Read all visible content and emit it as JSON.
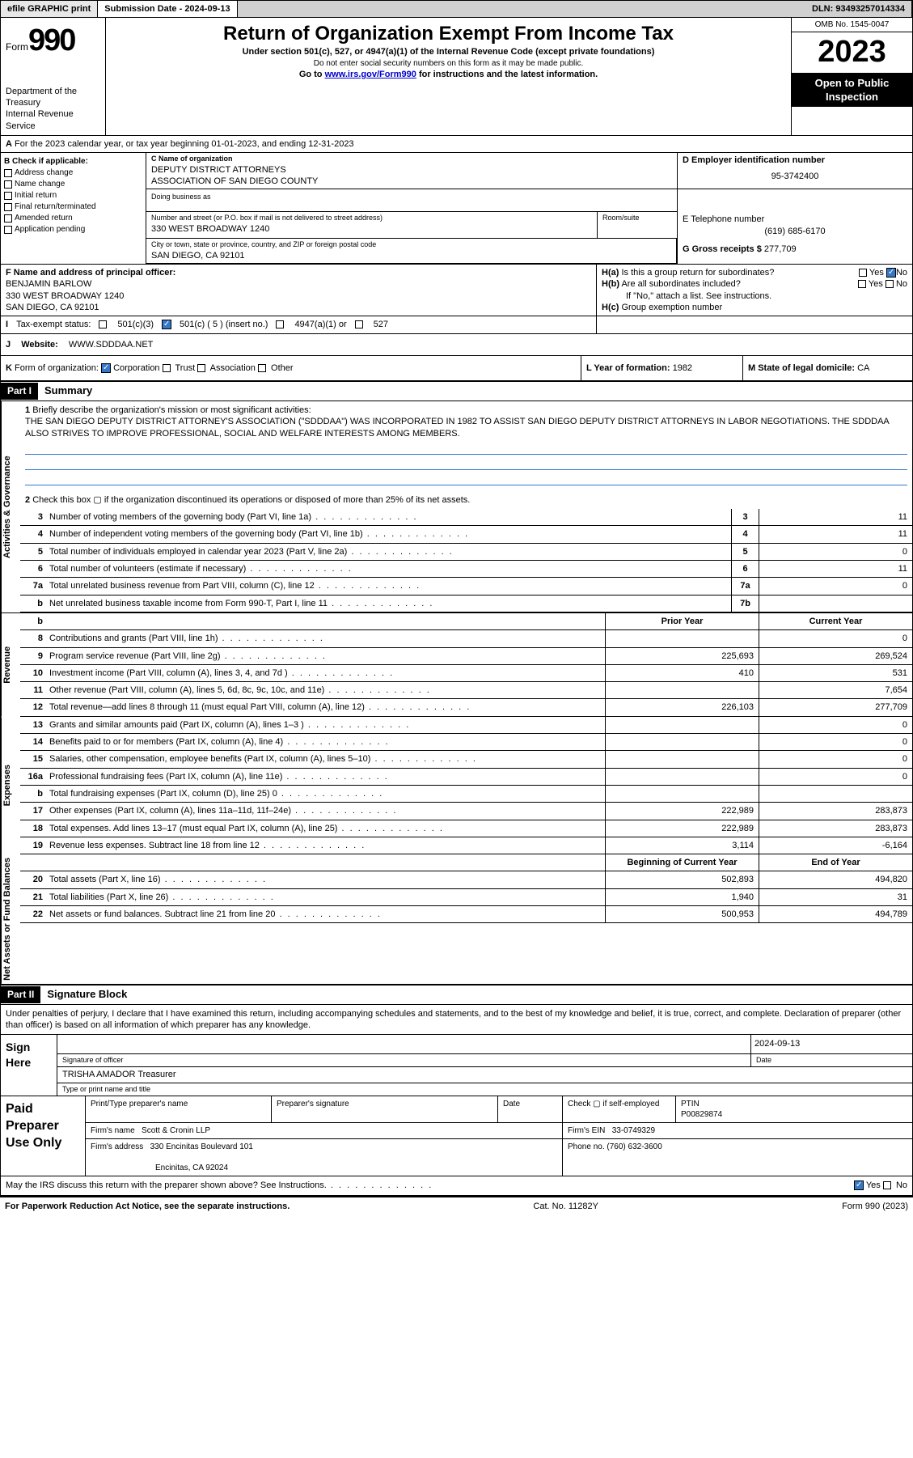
{
  "topbar": {
    "efile": "efile GRAPHIC print",
    "submission": "Submission Date - 2024-09-13",
    "dln": "DLN: 93493257014334"
  },
  "header": {
    "form_label": "Form",
    "form_num": "990",
    "title": "Return of Organization Exempt From Income Tax",
    "sub": "Under section 501(c), 527, or 4947(a)(1) of the Internal Revenue Code (except private foundations)",
    "ssn_warn": "Do not enter social security numbers on this form as it may be made public.",
    "goto": "Go to ",
    "url": "www.irs.gov/Form990",
    "goto_suffix": " for instructions and the latest information.",
    "dept": "Department of the Treasury",
    "irs": "Internal Revenue Service",
    "omb": "OMB No. 1545-0047",
    "year": "2023",
    "open": "Open to Public Inspection"
  },
  "row_a": {
    "label": "A",
    "text": "For the 2023 calendar year, or tax year beginning 01-01-2023",
    "ending": ", and ending 12-31-2023"
  },
  "col_b": {
    "label": "B Check if applicable:",
    "addr": "Address change",
    "name": "Name change",
    "init": "Initial return",
    "final": "Final return/terminated",
    "amend": "Amended return",
    "app": "Application pending"
  },
  "org": {
    "c_label": "C Name of organization",
    "name1": "DEPUTY DISTRICT ATTORNEYS",
    "name2": "ASSOCIATION OF SAN DIEGO COUNTY",
    "dba_label": "Doing business as",
    "street_label": "Number and street (or P.O. box if mail is not delivered to street address)",
    "room_label": "Room/suite",
    "street": "330 WEST BROADWAY 1240",
    "city_label": "City or town, state or province, country, and ZIP or foreign postal code",
    "city": "SAN DIEGO, CA  92101",
    "d_label": "D Employer identification number",
    "ein": "95-3742400",
    "e_label": "E Telephone number",
    "phone": "(619) 685-6170",
    "g_label": "G Gross receipts $",
    "gross": "277,709"
  },
  "officer": {
    "f_label": "F Name and address of principal officer:",
    "name": "BENJAMIN BARLOW",
    "street": "330 WEST BROADWAY 1240",
    "city": "SAN DIEGO, CA  92101"
  },
  "h": {
    "ha": "Is this a group return for subordinates?",
    "hb": "Are all subordinates included?",
    "hb_note": "If \"No,\" attach a list. See instructions.",
    "hc": "Group exemption number",
    "yes": "Yes",
    "no": "No",
    "ha_label": "H(a)",
    "hb_label": "H(b)",
    "hc_label": "H(c)"
  },
  "row_i": {
    "label": "I",
    "tax_label": "Tax-exempt status:",
    "c3": "501(c)(3)",
    "c5": "501(c) ( 5 ) (insert no.)",
    "a1": "4947(a)(1) or",
    "c527": "527"
  },
  "row_j": {
    "label": "J",
    "website_label": "Website:",
    "website": "WWW.SDDDAA.NET"
  },
  "row_k": {
    "label": "K",
    "form_label": "Form of organization:",
    "corp": "Corporation",
    "trust": "Trust",
    "assoc": "Association",
    "other": "Other",
    "l_label": "L Year of formation:",
    "l_val": "1982",
    "m_label": "M State of legal domicile:",
    "m_val": "CA"
  },
  "parts": {
    "p1": "Part I",
    "p1_title": "Summary",
    "p2": "Part II",
    "p2_title": "Signature Block"
  },
  "summary": {
    "sections": {
      "gov": "Activities & Governance",
      "rev": "Revenue",
      "exp": "Expenses",
      "net": "Net Assets or Fund Balances"
    },
    "q1_label": "1",
    "q1": "Briefly describe the organization's mission or most significant activities:",
    "mission": "THE SAN DIEGO DEPUTY DISTRICT ATTORNEY'S ASSOCIATION (\"SDDDAA\") WAS INCORPORATED IN 1982 TO ASSIST SAN DIEGO DEPUTY DISTRICT ATTORNEYS IN LABOR NEGOTIATIONS. THE SDDDAA ALSO STRIVES TO IMPROVE PROFESSIONAL, SOCIAL AND WELFARE INTERESTS AMONG MEMBERS.",
    "q2": "Check this box ▢ if the organization discontinued its operations or disposed of more than 25% of its net assets.",
    "lines_gov": [
      {
        "n": "3",
        "d": "Number of voting members of the governing body (Part VI, line 1a)",
        "b": "3",
        "v": "11"
      },
      {
        "n": "4",
        "d": "Number of independent voting members of the governing body (Part VI, line 1b)",
        "b": "4",
        "v": "11"
      },
      {
        "n": "5",
        "d": "Total number of individuals employed in calendar year 2023 (Part V, line 2a)",
        "b": "5",
        "v": "0"
      },
      {
        "n": "6",
        "d": "Total number of volunteers (estimate if necessary)",
        "b": "6",
        "v": "11"
      },
      {
        "n": "7a",
        "d": "Total unrelated business revenue from Part VIII, column (C), line 12",
        "b": "7a",
        "v": "0"
      },
      {
        "n": "b",
        "d": "Net unrelated business taxable income from Form 990-T, Part I, line 11",
        "b": "7b",
        "v": ""
      }
    ],
    "prior_hdr": "Prior Year",
    "current_hdr": "Current Year",
    "boc_hdr": "Beginning of Current Year",
    "eoy_hdr": "End of Year",
    "lines_rev": [
      {
        "n": "8",
        "d": "Contributions and grants (Part VIII, line 1h)",
        "c1": "",
        "c2": "0"
      },
      {
        "n": "9",
        "d": "Program service revenue (Part VIII, line 2g)",
        "c1": "225,693",
        "c2": "269,524"
      },
      {
        "n": "10",
        "d": "Investment income (Part VIII, column (A), lines 3, 4, and 7d )",
        "c1": "410",
        "c2": "531"
      },
      {
        "n": "11",
        "d": "Other revenue (Part VIII, column (A), lines 5, 6d, 8c, 9c, 10c, and 11e)",
        "c1": "",
        "c2": "7,654"
      },
      {
        "n": "12",
        "d": "Total revenue—add lines 8 through 11 (must equal Part VIII, column (A), line 12)",
        "c1": "226,103",
        "c2": "277,709"
      }
    ],
    "lines_exp": [
      {
        "n": "13",
        "d": "Grants and similar amounts paid (Part IX, column (A), lines 1–3 )",
        "c1": "",
        "c2": "0"
      },
      {
        "n": "14",
        "d": "Benefits paid to or for members (Part IX, column (A), line 4)",
        "c1": "",
        "c2": "0"
      },
      {
        "n": "15",
        "d": "Salaries, other compensation, employee benefits (Part IX, column (A), lines 5–10)",
        "c1": "",
        "c2": "0"
      },
      {
        "n": "16a",
        "d": "Professional fundraising fees (Part IX, column (A), line 11e)",
        "c1": "",
        "c2": "0"
      },
      {
        "n": "b",
        "d": "Total fundraising expenses (Part IX, column (D), line 25) 0",
        "c1": "",
        "c2": ""
      },
      {
        "n": "17",
        "d": "Other expenses (Part IX, column (A), lines 11a–11d, 11f–24e)",
        "c1": "222,989",
        "c2": "283,873"
      },
      {
        "n": "18",
        "d": "Total expenses. Add lines 13–17 (must equal Part IX, column (A), line 25)",
        "c1": "222,989",
        "c2": "283,873"
      },
      {
        "n": "19",
        "d": "Revenue less expenses. Subtract line 18 from line 12",
        "c1": "3,114",
        "c2": "-6,164"
      }
    ],
    "lines_net": [
      {
        "n": "20",
        "d": "Total assets (Part X, line 16)",
        "c1": "502,893",
        "c2": "494,820"
      },
      {
        "n": "21",
        "d": "Total liabilities (Part X, line 26)",
        "c1": "1,940",
        "c2": "31"
      },
      {
        "n": "22",
        "d": "Net assets or fund balances. Subtract line 21 from line 20",
        "c1": "500,953",
        "c2": "494,789"
      }
    ]
  },
  "sig": {
    "perjury": "Under penalties of perjury, I declare that I have examined this return, including accompanying schedules and statements, and to the best of my knowledge and belief, it is true, correct, and complete. Declaration of preparer (other than officer) is based on all information of which preparer has any knowledge.",
    "sign_here": "Sign Here",
    "sig_officer": "Signature of officer",
    "date_label": "Date",
    "sig_date": "2024-09-13",
    "officer_name": "TRISHA AMADOR  Treasurer",
    "type_label": "Type or print name and title",
    "paid": "Paid Preparer Use Only",
    "prep_name_label": "Print/Type preparer's name",
    "prep_sig_label": "Preparer's signature",
    "check_if": "Check ▢ if self-employed",
    "ptin_label": "PTIN",
    "ptin": "P00829874",
    "firm_name_label": "Firm's name",
    "firm_name": "Scott & Cronin LLP",
    "firm_ein_label": "Firm's EIN",
    "firm_ein": "33-0749329",
    "firm_addr_label": "Firm's address",
    "firm_addr1": "330 Encinitas Boulevard 101",
    "firm_addr2": "Encinitas, CA  92024",
    "phone_label": "Phone no.",
    "phone": "(760) 632-3600",
    "discuss": "May the IRS discuss this return with the preparer shown above? See Instructions."
  },
  "footer": {
    "left": "For Paperwork Reduction Act Notice, see the separate instructions.",
    "mid": "Cat. No. 11282Y",
    "right": "Form 990 (2023)"
  }
}
